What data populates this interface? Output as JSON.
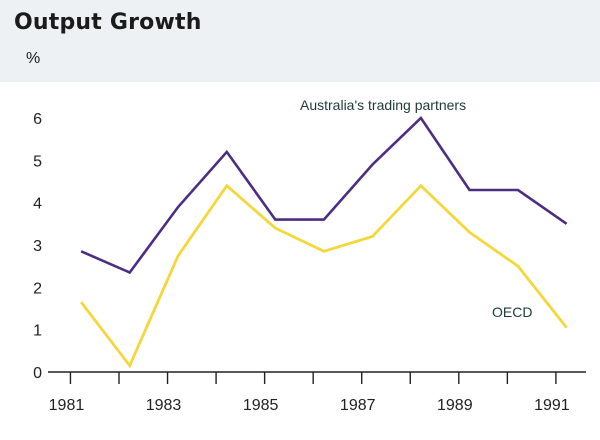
{
  "chart_data": {
    "type": "line",
    "title": "Output Growth",
    "ylabel": "%",
    "xlabel": "",
    "ylim": [
      0,
      6
    ],
    "xlim": [
      1980.6,
      1991.6
    ],
    "y_ticks": [
      0,
      1,
      2,
      3,
      4,
      5,
      6
    ],
    "x_ticks": [
      1981,
      1982,
      1983,
      1984,
      1985,
      1986,
      1987,
      1988,
      1989,
      1990,
      1991
    ],
    "x_tick_labels": [
      "1981",
      "1983",
      "1985",
      "1987",
      "1989",
      "1991"
    ],
    "x_label_values": [
      1981,
      1983,
      1985,
      1987,
      1989,
      1991
    ],
    "series": [
      {
        "name": "Australia's trading partners",
        "color": "#4b2d83",
        "x": [
          1981.2,
          1982.2,
          1983.2,
          1984.2,
          1985.2,
          1986.2,
          1987.2,
          1988.2,
          1989.2,
          1990.2,
          1991.2
        ],
        "values": [
          2.85,
          2.35,
          3.9,
          5.2,
          3.6,
          3.6,
          4.9,
          6.0,
          4.3,
          4.3,
          3.5
        ]
      },
      {
        "name": "OECD",
        "color": "#f4d73b",
        "x": [
          1981.2,
          1982.2,
          1983.2,
          1984.2,
          1985.2,
          1986.2,
          1987.2,
          1988.2,
          1989.2,
          1990.2,
          1991.2
        ],
        "values": [
          1.65,
          0.15,
          2.75,
          4.4,
          3.4,
          2.85,
          3.2,
          4.4,
          3.3,
          2.5,
          1.05
        ]
      }
    ]
  }
}
